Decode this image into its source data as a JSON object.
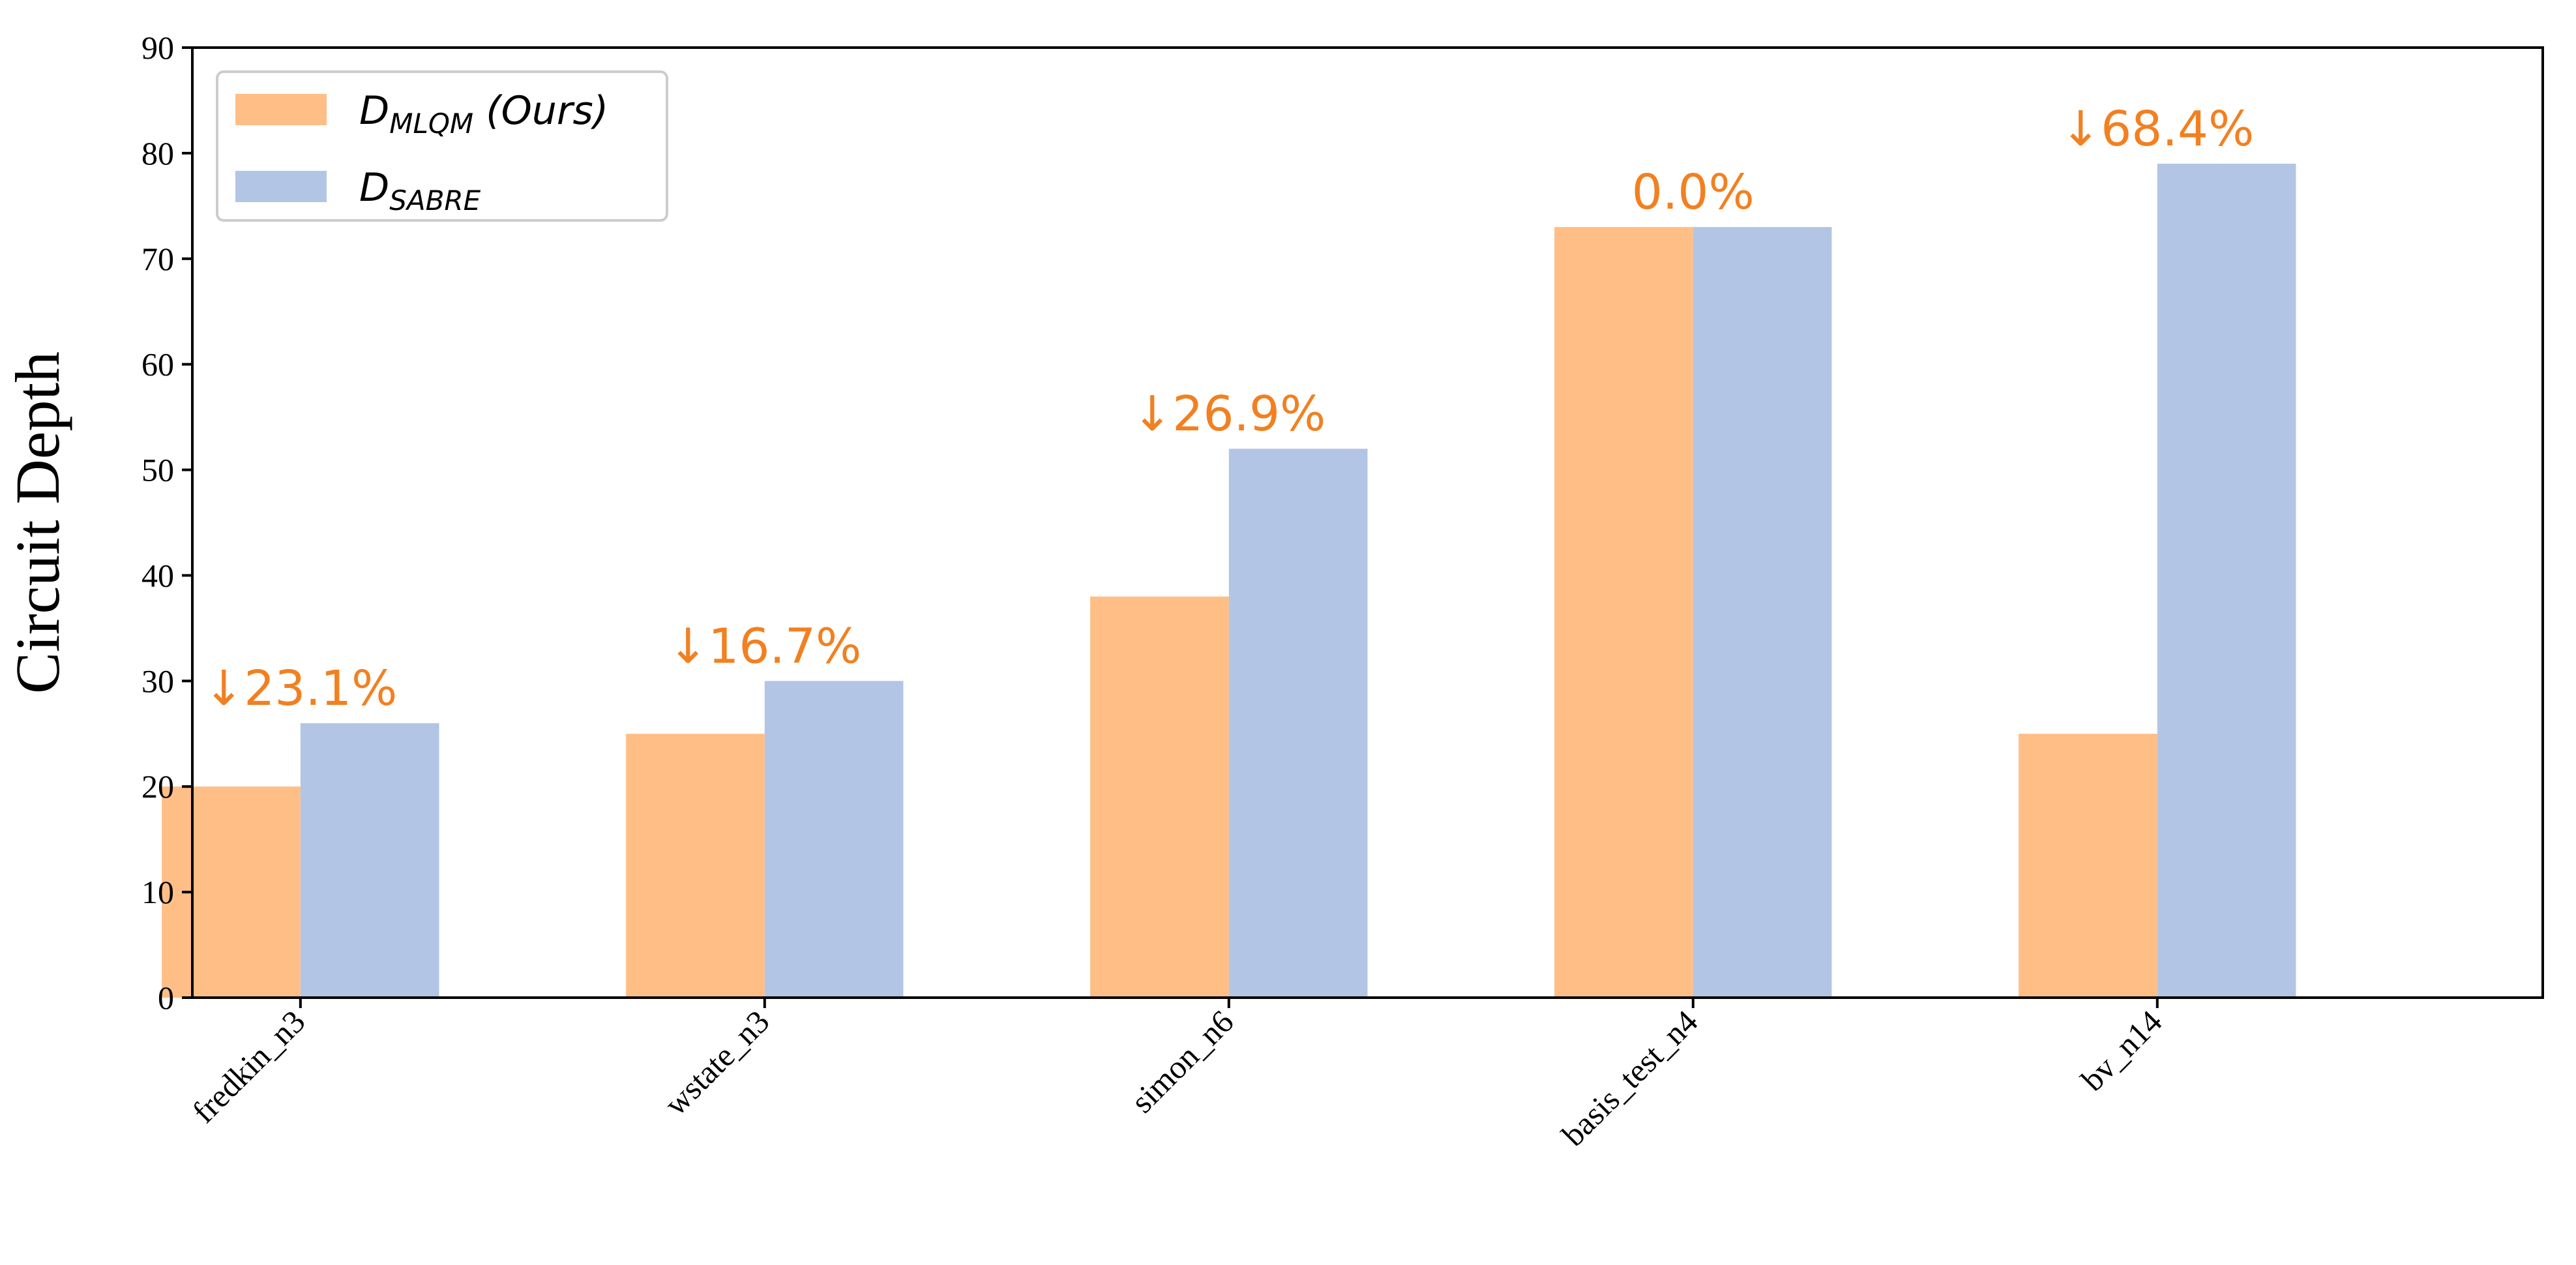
{
  "chart_data": {
    "type": "bar",
    "categories": [
      "fredkin_n3",
      "wstate_n3",
      "simon_n6",
      "basis_test_n4",
      "bv_n14"
    ],
    "series": [
      {
        "name": "D_MLQM (Ours)",
        "legend_main": "D",
        "legend_sub": "MLQM",
        "legend_suffix": " (Ours)",
        "color": "#ffbe86",
        "values": [
          20,
          25,
          38,
          73,
          25
        ]
      },
      {
        "name": "D_SABRE",
        "legend_main": "D",
        "legend_sub": "SABRE",
        "legend_suffix": "",
        "color": "#b3c5e4",
        "values": [
          26,
          30,
          52,
          73,
          79
        ]
      }
    ],
    "annotations": [
      "↓23.1%",
      "↓16.7%",
      "↓26.9%",
      "0.0%",
      "↓68.4%"
    ],
    "annotation_color": "#f28020",
    "ylabel": "Circuit Depth",
    "xlabel": "",
    "ylim": [
      0,
      90
    ],
    "yticks": [
      0,
      10,
      20,
      30,
      40,
      50,
      60,
      70,
      80,
      90
    ],
    "grid": false,
    "legend_position": "top-left"
  }
}
